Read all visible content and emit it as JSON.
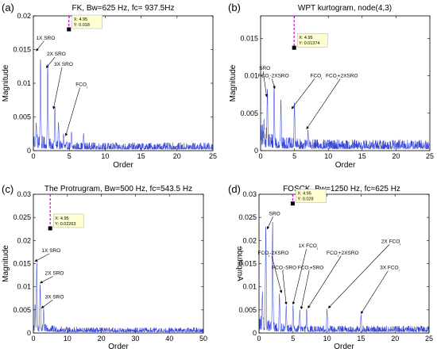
{
  "colors": {
    "signal": "#2b3bd6",
    "cursor": "#e000e0",
    "datatip_bg": "#ffffd2",
    "axis": "#000000",
    "background": "#ffffff"
  },
  "chart_data": [
    {
      "type": "line",
      "panel_label": "(a)",
      "title": "FK, Bw=625 Hz, fc= 937.5Hz",
      "xlabel": "Order",
      "ylabel": "Magnitude",
      "xlim": [
        0,
        25
      ],
      "ylim": [
        0,
        0.02
      ],
      "xticks": [
        0,
        5,
        10,
        15,
        20,
        25
      ],
      "yticks": [
        0,
        0.005,
        0.01,
        0.015,
        0.02
      ],
      "ytick_labels": [
        "0",
        "0.005",
        "0.01",
        "0.015",
        "0.02"
      ],
      "noise": 0.0012,
      "peaks": [
        {
          "x": 1.0,
          "y": 0.0135
        },
        {
          "x": 2.0,
          "y": 0.0128
        },
        {
          "x": 3.0,
          "y": 0.0065
        },
        {
          "x": 3.5,
          "y": 0.0042
        },
        {
          "x": 0.4,
          "y": 0.0042
        },
        {
          "x": 4.2,
          "y": 0.0025
        },
        {
          "x": 5.3,
          "y": 0.0028
        },
        {
          "x": 7.0,
          "y": 0.0026
        }
      ],
      "cursor": {
        "x": 4.95,
        "y": 0.018,
        "label_x": "X: 4.95",
        "label_y": "Y: 0.018"
      },
      "annotations": [
        {
          "text": "1X SRO",
          "tx": 1.7,
          "ty": 0.0165,
          "ax": 0.4,
          "ay": 0.0148
        },
        {
          "text": "2X SRO",
          "tx": 3.2,
          "ty": 0.0141,
          "ax": 1.8,
          "ay": 0.0123
        },
        {
          "text": "3X SRO",
          "tx": 4.2,
          "ty": 0.0126,
          "ax": 2.8,
          "ay": 0.0062
        },
        {
          "text": "FCO",
          "sub": "i",
          "tx": 6.7,
          "ty": 0.0096,
          "ax": 4.5,
          "ay": 0.0022
        }
      ]
    },
    {
      "type": "line",
      "panel_label": "(b)",
      "title": "WPT kurtogram, node(4,3)",
      "xlabel": "Order",
      "ylabel": "Magnitude",
      "xlim": [
        0,
        25
      ],
      "ylim": [
        0,
        0.018
      ],
      "xticks": [
        0,
        5,
        10,
        15,
        20,
        25
      ],
      "yticks": [
        0,
        0.005,
        0.01,
        0.015
      ],
      "ytick_labels": [
        "0",
        "0.005",
        "0.01",
        "0.015"
      ],
      "noise": 0.0015,
      "peaks": [
        {
          "x": 1.0,
          "y": 0.0082
        },
        {
          "x": 2.0,
          "y": 0.0088
        },
        {
          "x": 3.0,
          "y": 0.0068
        },
        {
          "x": 5.0,
          "y": 0.0064
        },
        {
          "x": 0.5,
          "y": 0.0042
        },
        {
          "x": 7.0,
          "y": 0.0028
        }
      ],
      "cursor": {
        "x": 4.95,
        "y": 0.01374,
        "label_x": "X: 4.95",
        "label_y": "Y: 0.01374"
      },
      "annotations": [
        {
          "text": "SRO",
          "tx": 0.6,
          "ty": 0.0108,
          "ax": 0.9,
          "ay": 0.0072
        },
        {
          "text": "FCO",
          "sub": "i",
          "suffix": "-2XSRO",
          "tx": 1.9,
          "ty": 0.0098,
          "ax": 2.1,
          "ay": 0.0083
        },
        {
          "text": "FCO",
          "sub": "i",
          "tx": 8.2,
          "ty": 0.0098,
          "ax": 4.6,
          "ay": 0.0056
        },
        {
          "text": "FCO",
          "sub": "i",
          "suffix": "+2XSRO",
          "tx": 12.0,
          "ty": 0.0098,
          "ax": 6.8,
          "ay": 0.0029
        }
      ]
    },
    {
      "type": "line",
      "panel_label": "(c)",
      "title": "The Protrugram, Bw=500 Hz, fc=543.5 Hz",
      "xlabel": "Order",
      "ylabel": "Magnitude",
      "xlim": [
        0,
        50
      ],
      "ylim": [
        0,
        0.03
      ],
      "xticks": [
        0,
        10,
        20,
        30,
        40,
        50
      ],
      "yticks": [
        0,
        0.005,
        0.01,
        0.015,
        0.02,
        0.025,
        0.03
      ],
      "ytick_labels": [
        "0",
        "0.005",
        "0.01",
        "0.015",
        "0.02",
        "0.025",
        "0.03"
      ],
      "noise": 0.0012,
      "peaks": [
        {
          "x": 1.0,
          "y": 0.0152
        },
        {
          "x": 2.0,
          "y": 0.0105
        },
        {
          "x": 3.0,
          "y": 0.0052
        },
        {
          "x": 0.5,
          "y": 0.0062
        }
      ],
      "cursor": {
        "x": 4.95,
        "y": 0.02263,
        "label_x": "X: 4.95",
        "label_y": "Y: 0.02263"
      },
      "annotations": [
        {
          "text": "1X SRO",
          "tx": 5.2,
          "ty": 0.0175,
          "ax": 0.5,
          "ay": 0.0155
        },
        {
          "text": "2X SRO",
          "tx": 6.2,
          "ty": 0.0126,
          "ax": 2.0,
          "ay": 0.0108
        },
        {
          "text": "3X SRO",
          "tx": 6.2,
          "ty": 0.0075,
          "ax": 2.4,
          "ay": 0.0054
        }
      ]
    },
    {
      "type": "line",
      "panel_label": "(d)",
      "title": "FOSCK, Bw=1250 Hz, fc=625 Hz",
      "xlabel": "Order",
      "ylabel": "Amplitude",
      "ylabel_mirrored": true,
      "xlim": [
        0,
        25
      ],
      "ylim": [
        0,
        0.03
      ],
      "xticks": [
        0,
        5,
        10,
        15,
        20,
        25
      ],
      "yticks": [
        0,
        0.005,
        0.01,
        0.015,
        0.02,
        0.025,
        0.03
      ],
      "ytick_labels": [
        "0",
        "0.005",
        "0.01",
        "0.015",
        "0.02",
        "0.025",
        "0.03"
      ],
      "noise": 0.0016,
      "peaks": [
        {
          "x": 1.0,
          "y": 0.023
        },
        {
          "x": 2.0,
          "y": 0.024
        },
        {
          "x": 3.0,
          "y": 0.0085
        },
        {
          "x": 4.0,
          "y": 0.006
        },
        {
          "x": 5.0,
          "y": 0.006
        },
        {
          "x": 6.0,
          "y": 0.005
        },
        {
          "x": 7.0,
          "y": 0.0052
        },
        {
          "x": 10.0,
          "y": 0.0052
        },
        {
          "x": 15.0,
          "y": 0.004
        },
        {
          "x": 0.5,
          "y": 0.009
        }
      ],
      "cursor": {
        "x": 4.95,
        "y": 0.028,
        "label_x": "X: 4.95",
        "label_y": "Y: 0.028"
      },
      "annotations": [
        {
          "text": "SRO",
          "tx": 2.3,
          "ty": 0.0255,
          "ax": 1.2,
          "ay": 0.0225
        },
        {
          "text": "FCO",
          "sub": "i",
          "suffix": "-2XSRO",
          "tx": 2.1,
          "ty": 0.017,
          "ax": 3.3,
          "ay": 0.0087
        },
        {
          "text": "1X FCO",
          "sub": "i",
          "tx": 7.2,
          "ty": 0.0185,
          "ax": 5.0,
          "ay": 0.0062
        },
        {
          "text": "FCO",
          "sub": "i",
          "suffix": "-SRO",
          "tx": 3.7,
          "ty": 0.0138,
          "ax": 4.0,
          "ay": 0.0062
        },
        {
          "text": "FCO",
          "sub": "i",
          "suffix": "+SRO",
          "tx": 7.6,
          "ty": 0.0138,
          "ax": 6.2,
          "ay": 0.0052
        },
        {
          "text": "FCO",
          "sub": "i",
          "suffix": "+2XSRO",
          "tx": 12.3,
          "ty": 0.017,
          "ax": 7.2,
          "ay": 0.0054
        },
        {
          "text": "2X FCO",
          "sub": "i",
          "tx": 19.4,
          "ty": 0.0195,
          "ax": 10.2,
          "ay": 0.0054
        },
        {
          "text": "3X FCO",
          "sub": "i",
          "tx": 19.2,
          "ty": 0.0138,
          "ax": 15.0,
          "ay": 0.0042
        }
      ]
    }
  ]
}
